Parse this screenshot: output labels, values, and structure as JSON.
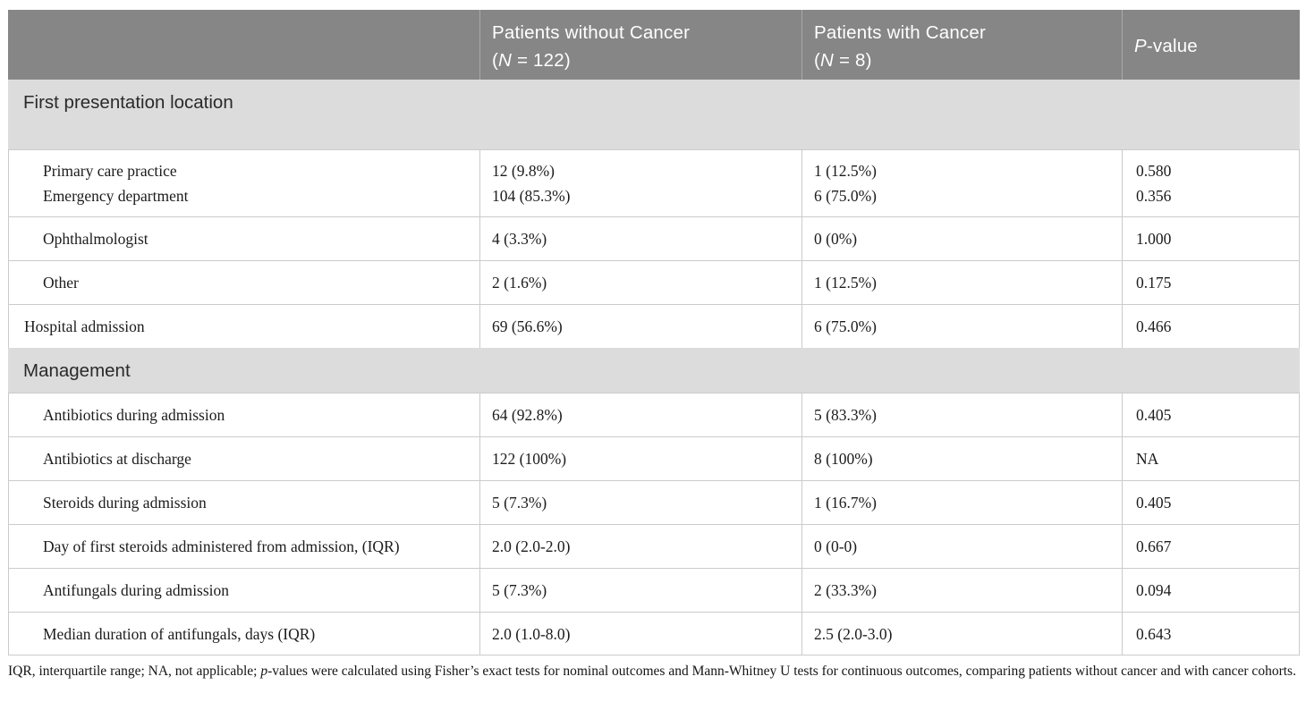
{
  "colors": {
    "header_bg": "#868686",
    "header_text": "#ffffff",
    "section_bg": "#dcdcdc",
    "border": "#cbcbcb",
    "body_text": "#1c1c1c"
  },
  "header": {
    "col1": "",
    "col2": {
      "line1": "Patients without Cancer",
      "n_open": "(",
      "n_italic": "N",
      "n_rest": " = 122)"
    },
    "col3": {
      "line1": "Patients with Cancer",
      "n_open": "(",
      "n_italic": "N",
      "n_rest": " = 8)"
    },
    "col4": {
      "italic": "P",
      "rest": "-value"
    }
  },
  "sections": [
    {
      "title": "First presentation location",
      "rows": [
        {
          "indent": true,
          "lines": [
            {
              "label": "Primary care practice",
              "c2": "12 (9.8%)",
              "c3": "1 (12.5%)",
              "c4": "0.580"
            },
            {
              "label": "Emergency department",
              "c2": "104 (85.3%)",
              "c3": "6 (75.0%)",
              "c4": "0.356"
            }
          ]
        },
        {
          "indent": true,
          "lines": [
            {
              "label": "Ophthalmologist",
              "c2": "4 (3.3%)",
              "c3": "0 (0%)",
              "c4": "1.000"
            }
          ]
        },
        {
          "indent": true,
          "lines": [
            {
              "label": "Other",
              "c2": "2 (1.6%)",
              "c3": "1 (12.5%)",
              "c4": "0.175"
            }
          ]
        },
        {
          "indent": false,
          "lines": [
            {
              "label": "Hospital admission",
              "c2": "69 (56.6%)",
              "c3": "6 (75.0%)",
              "c4": "0.466"
            }
          ]
        }
      ]
    },
    {
      "title": "Management",
      "rows": [
        {
          "indent": true,
          "lines": [
            {
              "label": "Antibiotics during admission",
              "c2": "64 (92.8%)",
              "c3": "5 (83.3%)",
              "c4": "0.405"
            }
          ]
        },
        {
          "indent": true,
          "lines": [
            {
              "label": "Antibiotics at discharge",
              "c2": "122 (100%)",
              "c3": "8 (100%)",
              "c4": "NA"
            }
          ]
        },
        {
          "indent": true,
          "lines": [
            {
              "label": "Steroids during admission",
              "c2": "5 (7.3%)",
              "c3": "1 (16.7%)",
              "c4": "0.405"
            }
          ]
        },
        {
          "indent": true,
          "lines": [
            {
              "label": "Day of first steroids administered from admission, (IQR)",
              "c2": "2.0 (2.0-2.0)",
              "c3": "0 (0-0)",
              "c4": "0.667"
            }
          ]
        },
        {
          "indent": true,
          "lines": [
            {
              "label": "Antifungals during admission",
              "c2": "5 (7.3%)",
              "c3": "2 (33.3%)",
              "c4": "0.094"
            }
          ]
        },
        {
          "indent": true,
          "lines": [
            {
              "label": "Median duration of antifungals, days (IQR)",
              "c2": "2.0 (1.0-8.0)",
              "c3": "2.5 (2.0-3.0)",
              "c4": "0.643"
            }
          ]
        }
      ]
    }
  ],
  "footnote": {
    "pre": "IQR, interquartile range; NA, not applicable; ",
    "italic": "p",
    "post": "-values were calculated using Fisher’s exact tests for nominal outcomes and Mann-Whitney U tests for continuous outcomes, comparing patients without cancer and with cancer cohorts."
  }
}
